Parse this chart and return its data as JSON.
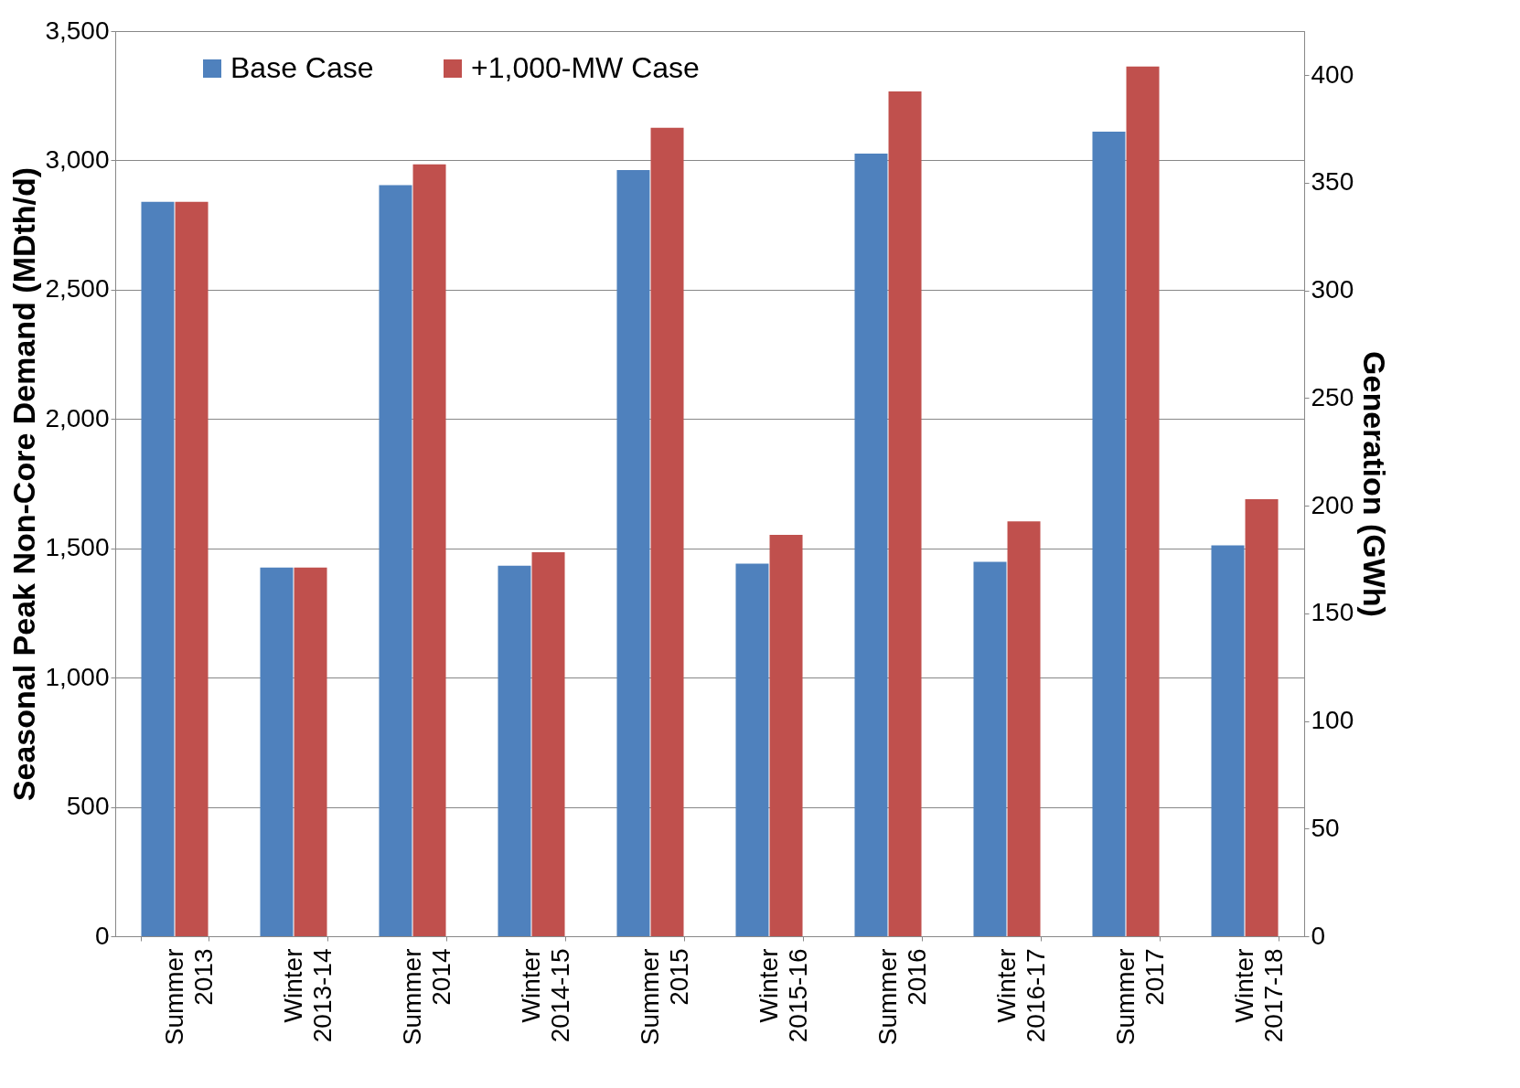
{
  "chart_data": {
    "type": "bar",
    "xlabel": null,
    "ylabel": "Seasonal Peak Non-Core Demand (MDth/d)",
    "y2label": "Generation (GWh)",
    "categories": [
      "Summer 2013",
      "Winter 2013-14",
      "Summer 2014",
      "Winter 2014-15",
      "Summer 2015",
      "Winter 2015-16",
      "Summer 2016",
      "Winter 2016-17",
      "Summer 2017",
      "Winter 2017-18"
    ],
    "series": [
      {
        "name": "Base Case",
        "color": "#4f81bd",
        "values": [
          2840,
          1426,
          2904,
          1433,
          2963,
          1441,
          3026,
          1448,
          3111,
          1511
        ]
      },
      {
        "name": "+1,000-MW Case",
        "color": "#c0504d",
        "values": [
          2840,
          1426,
          2985,
          1485,
          3126,
          1552,
          3267,
          1604,
          3363,
          1690
        ]
      }
    ],
    "ylim": [
      0,
      3500
    ],
    "yticks": [
      {
        "value": 0,
        "label": "0"
      },
      {
        "value": 500,
        "label": "500"
      },
      {
        "value": 1000,
        "label": "1,000"
      },
      {
        "value": 1500,
        "label": "1,500"
      },
      {
        "value": 2000,
        "label": "2,000"
      },
      {
        "value": 2500,
        "label": "2,500"
      },
      {
        "value": 3000,
        "label": "3,000"
      },
      {
        "value": 3500,
        "label": "3,500"
      }
    ],
    "y2lim": [
      0,
      420.5
    ],
    "y2ticks": [
      0,
      50,
      100,
      150,
      200,
      250,
      300,
      350,
      400
    ],
    "grid": "y",
    "legend": "top left"
  }
}
